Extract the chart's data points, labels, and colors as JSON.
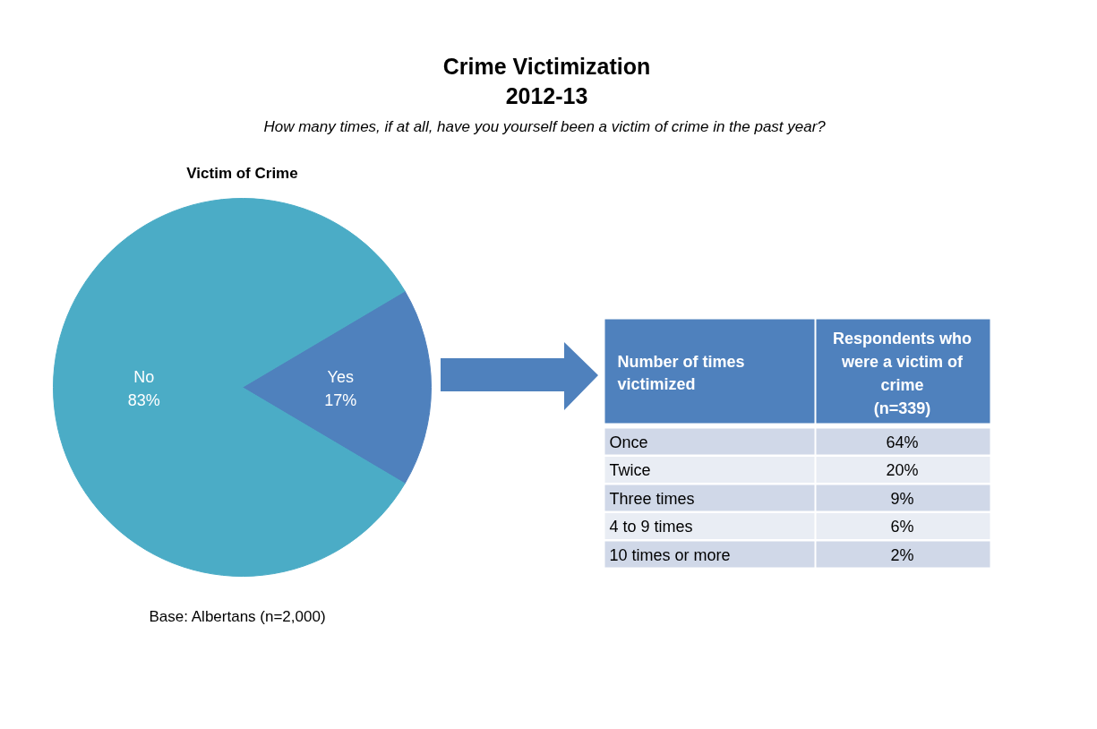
{
  "chart_data": [
    {
      "type": "pie",
      "title": "Crime Victimization\n2012-13",
      "subtitle": "How many  times, if at all, have you yourself been a victim of crime in the past year?",
      "annotations": [
        "Victim of Crime",
        "Base: Albertans (n=2,000)"
      ],
      "categories": [
        "No",
        "Yes"
      ],
      "values": [
        83,
        17
      ],
      "colors": [
        "#4bacc6",
        "#4f81bd"
      ],
      "value_labels": [
        "83%",
        "17%"
      ]
    },
    {
      "type": "other",
      "xlabel": "Number of times\nvictimized",
      "ylabel": "Respondents who\nwere a victim of\ncrime\n(n=339)",
      "categories": [
        "Once",
        "Twice",
        "Three times",
        "4 to 9 times",
        "10 times or more"
      ],
      "values": [
        64,
        20,
        9,
        6,
        2
      ],
      "value_labels": [
        "64%",
        "20%",
        "9%",
        "6%",
        "2%"
      ],
      "color": "#4f81bd",
      "colors": [
        "#d0d8e8",
        "#e9edf4",
        "#d0d8e8",
        "#e9edf4",
        "#d0d8e8"
      ]
    }
  ]
}
